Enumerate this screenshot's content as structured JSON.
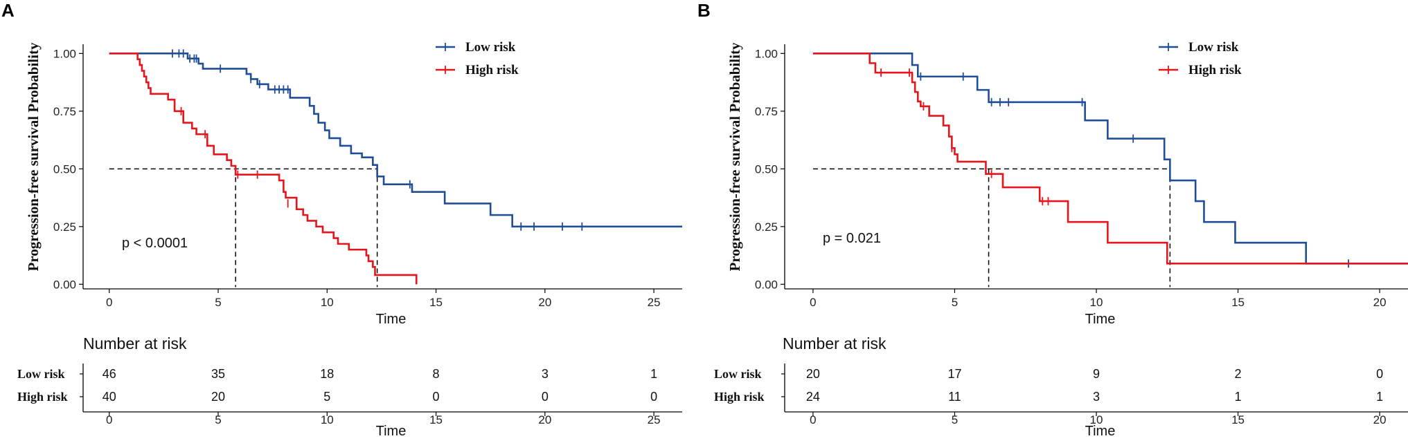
{
  "colors": {
    "low": "#1f4e96",
    "high": "#e8141c",
    "axis": "#000000",
    "ref": "#000000"
  },
  "chart_data": [
    {
      "type": "line",
      "subtype": "kaplan-meier",
      "panel": "A",
      "xlabel": "Time",
      "ylabel": "Progression-free survival Probability",
      "xlim": [
        -1.2,
        26.3
      ],
      "ylim": [
        -0.02,
        1.04
      ],
      "xticks": [
        0,
        5,
        10,
        15,
        20,
        25
      ],
      "yticks": [
        "0.00",
        "0.25",
        "0.50",
        "0.75",
        "1.00"
      ],
      "pvalue": "p < 0.0001",
      "legend": [
        "Low risk",
        "High risk"
      ],
      "series": [
        {
          "name": "Low risk",
          "color": "low",
          "steps": [
            [
              0,
              1.0
            ],
            [
              3.6,
              0.978
            ],
            [
              4.1,
              0.956
            ],
            [
              4.3,
              0.934
            ],
            [
              6.3,
              0.911
            ],
            [
              6.5,
              0.889
            ],
            [
              6.8,
              0.867
            ],
            [
              7.3,
              0.844
            ],
            [
              8.3,
              0.808
            ],
            [
              9.2,
              0.773
            ],
            [
              9.4,
              0.738
            ],
            [
              9.6,
              0.7
            ],
            [
              9.9,
              0.667
            ],
            [
              10.1,
              0.633
            ],
            [
              10.6,
              0.6
            ],
            [
              11.1,
              0.567
            ],
            [
              11.6,
              0.55
            ],
            [
              12.1,
              0.517
            ],
            [
              12.3,
              0.467
            ],
            [
              12.6,
              0.433
            ],
            [
              13.9,
              0.4
            ],
            [
              15.4,
              0.35
            ],
            [
              17.5,
              0.3
            ],
            [
              18.5,
              0.25
            ],
            [
              26.3,
              0.25
            ]
          ],
          "censors": [
            [
              2.9,
              1.0
            ],
            [
              3.2,
              1.0
            ],
            [
              3.4,
              1.0
            ],
            [
              3.7,
              0.978
            ],
            [
              3.9,
              0.978
            ],
            [
              4.0,
              0.978
            ],
            [
              5.1,
              0.934
            ],
            [
              6.5,
              0.889
            ],
            [
              6.9,
              0.867
            ],
            [
              7.6,
              0.844
            ],
            [
              7.8,
              0.844
            ],
            [
              8.0,
              0.844
            ],
            [
              8.2,
              0.844
            ],
            [
              13.8,
              0.433
            ],
            [
              18.9,
              0.25
            ],
            [
              19.5,
              0.25
            ],
            [
              20.8,
              0.25
            ],
            [
              21.7,
              0.25
            ]
          ]
        },
        {
          "name": "High risk",
          "color": "high",
          "steps": [
            [
              0,
              1.0
            ],
            [
              1.3,
              0.975
            ],
            [
              1.4,
              0.95
            ],
            [
              1.5,
              0.925
            ],
            [
              1.6,
              0.9
            ],
            [
              1.7,
              0.875
            ],
            [
              1.8,
              0.85
            ],
            [
              1.9,
              0.825
            ],
            [
              2.7,
              0.8
            ],
            [
              3.0,
              0.75
            ],
            [
              3.4,
              0.7
            ],
            [
              3.8,
              0.675
            ],
            [
              4.0,
              0.65
            ],
            [
              4.5,
              0.6
            ],
            [
              4.8,
              0.563
            ],
            [
              5.4,
              0.538
            ],
            [
              5.6,
              0.513
            ],
            [
              5.8,
              0.475
            ],
            [
              7.8,
              0.45
            ],
            [
              8.0,
              0.4
            ],
            [
              8.1,
              0.375
            ],
            [
              8.6,
              0.325
            ],
            [
              8.9,
              0.3
            ],
            [
              9.1,
              0.275
            ],
            [
              9.5,
              0.25
            ],
            [
              9.8,
              0.225
            ],
            [
              10.3,
              0.2
            ],
            [
              10.5,
              0.175
            ],
            [
              11.0,
              0.15
            ],
            [
              11.8,
              0.125
            ],
            [
              11.9,
              0.1
            ],
            [
              12.1,
              0.075
            ],
            [
              12.2,
              0.04
            ],
            [
              14.1,
              0.04
            ],
            [
              14.1,
              0.0
            ]
          ],
          "censors": [
            [
              3.3,
              0.75
            ],
            [
              4.4,
              0.65
            ],
            [
              5.9,
              0.475
            ],
            [
              6.8,
              0.475
            ],
            [
              8.2,
              0.35
            ]
          ]
        }
      ],
      "median_lines": [
        {
          "x": 5.8,
          "xstart": 0
        },
        {
          "x": 12.3,
          "xstart": 0
        }
      ],
      "risk_table": {
        "title": "Number at risk",
        "times": [
          0,
          5,
          10,
          15,
          20,
          25
        ],
        "rows": [
          {
            "group": "Low risk",
            "counts": [
              46,
              35,
              18,
              8,
              3,
              1
            ]
          },
          {
            "group": "High risk",
            "counts": [
              40,
              20,
              5,
              0,
              0,
              0
            ]
          }
        ],
        "xticks": [
          0,
          5,
          10,
          15,
          20,
          25
        ],
        "xlabel": "Time"
      }
    },
    {
      "type": "line",
      "subtype": "kaplan-meier",
      "panel": "B",
      "xlabel": "Time",
      "ylabel": "Progression-free survival Probability",
      "xlim": [
        -1.0,
        21.0
      ],
      "ylim": [
        -0.02,
        1.04
      ],
      "xticks": [
        0,
        5,
        10,
        15,
        20
      ],
      "yticks": [
        "0.00",
        "0.25",
        "0.50",
        "0.75",
        "1.00"
      ],
      "pvalue": "p = 0.021",
      "legend": [
        "Low risk",
        "High risk"
      ],
      "series": [
        {
          "name": "Low risk",
          "color": "low",
          "steps": [
            [
              0,
              1.0
            ],
            [
              3.5,
              0.95
            ],
            [
              3.7,
              0.9
            ],
            [
              5.8,
              0.842
            ],
            [
              6.2,
              0.789
            ],
            [
              9.6,
              0.71
            ],
            [
              10.4,
              0.631
            ],
            [
              12.4,
              0.541
            ],
            [
              12.6,
              0.45
            ],
            [
              13.5,
              0.36
            ],
            [
              13.8,
              0.27
            ],
            [
              14.9,
              0.18
            ],
            [
              17.4,
              0.09
            ],
            [
              21.0,
              0.09
            ]
          ],
          "censors": [
            [
              3.8,
              0.9
            ],
            [
              5.3,
              0.9
            ],
            [
              6.3,
              0.789
            ],
            [
              6.6,
              0.789
            ],
            [
              6.9,
              0.789
            ],
            [
              9.5,
              0.789
            ],
            [
              11.3,
              0.631
            ],
            [
              18.9,
              0.09
            ]
          ]
        },
        {
          "name": "High risk",
          "color": "high",
          "steps": [
            [
              0,
              1.0
            ],
            [
              2.0,
              0.958
            ],
            [
              2.2,
              0.917
            ],
            [
              3.5,
              0.875
            ],
            [
              3.6,
              0.833
            ],
            [
              3.7,
              0.792
            ],
            [
              3.8,
              0.771
            ],
            [
              4.1,
              0.73
            ],
            [
              4.6,
              0.688
            ],
            [
              4.8,
              0.64
            ],
            [
              4.9,
              0.59
            ],
            [
              5.0,
              0.563
            ],
            [
              5.1,
              0.531
            ],
            [
              6.1,
              0.478
            ],
            [
              6.7,
              0.42
            ],
            [
              8.0,
              0.36
            ],
            [
              9.0,
              0.27
            ],
            [
              10.4,
              0.18
            ],
            [
              12.5,
              0.09
            ],
            [
              21.0,
              0.09
            ]
          ],
          "censors": [
            [
              2.4,
              0.917
            ],
            [
              3.4,
              0.917
            ],
            [
              3.9,
              0.771
            ],
            [
              4.9,
              0.59
            ],
            [
              6.3,
              0.478
            ],
            [
              8.1,
              0.36
            ],
            [
              8.3,
              0.36
            ]
          ]
        }
      ],
      "median_lines": [
        {
          "x": 6.2,
          "xstart": 0
        },
        {
          "x": 12.6,
          "xstart": 0
        }
      ],
      "risk_table": {
        "title": "Number at risk",
        "times": [
          0,
          5,
          10,
          15,
          20
        ],
        "rows": [
          {
            "group": "Low risk",
            "counts": [
              20,
              17,
              9,
              2,
              0
            ]
          },
          {
            "group": "High risk",
            "counts": [
              24,
              11,
              3,
              1,
              1
            ]
          }
        ],
        "xticks": [
          0,
          5,
          10,
          15,
          20
        ],
        "xlabel": "Time"
      }
    }
  ]
}
